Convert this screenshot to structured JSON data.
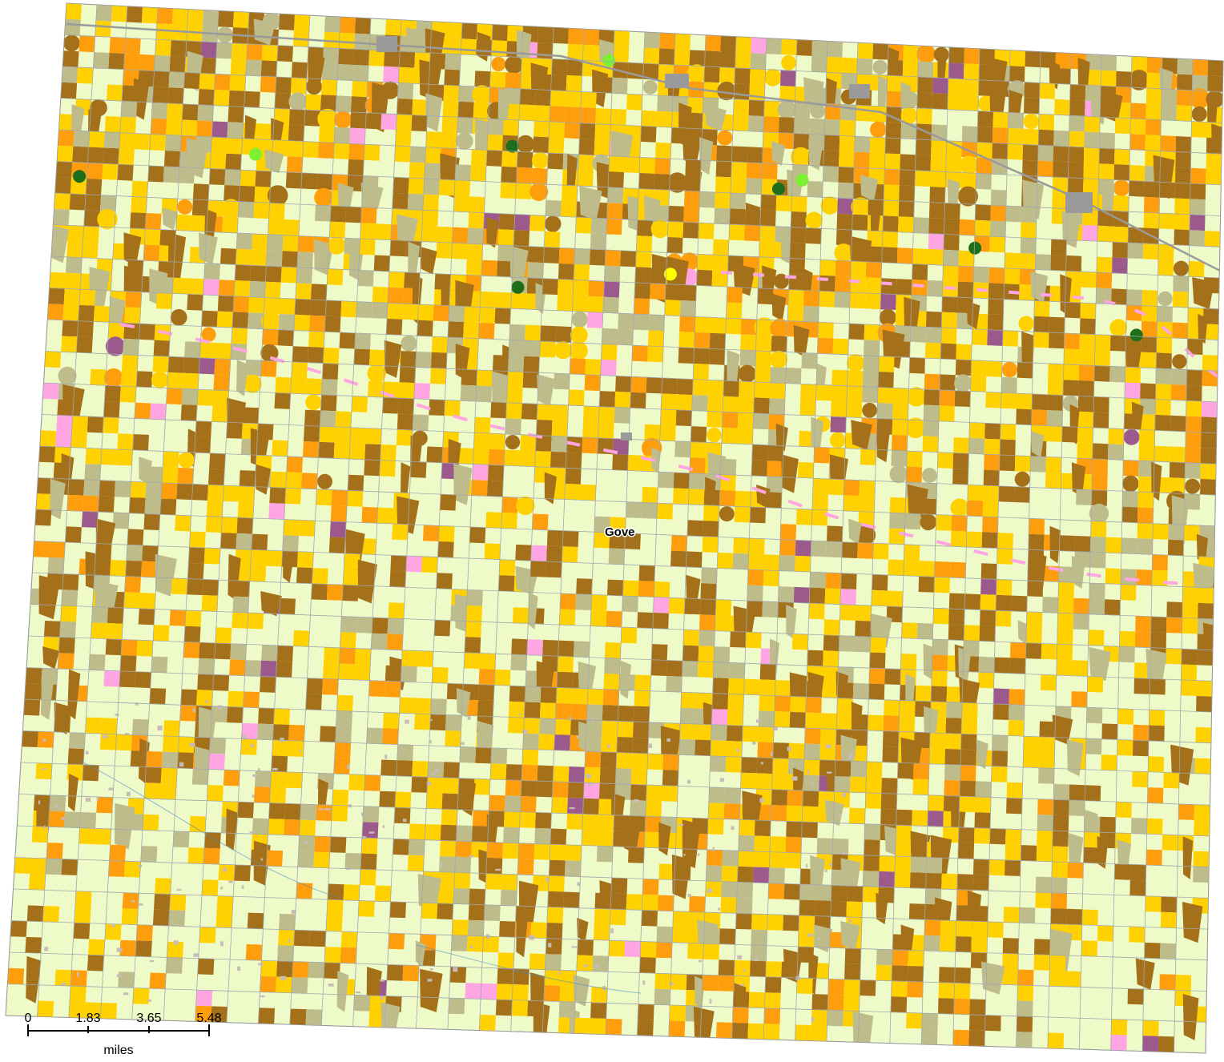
{
  "map": {
    "place_label": "Gove",
    "colors": {
      "grassland": "#EEFAC8",
      "winter_wheat": "#A5701A",
      "corn": "#FFD100",
      "sorghum": "#FF9E0C",
      "fallow": "#BFBC8C",
      "alfalfa": "#FFA5E2",
      "developed": "#9A9A9A",
      "road": "#A0A8B0",
      "sunflower": "#FFFF00",
      "triticale": "#9C5A8C",
      "evergreen": "#1F6E1A",
      "bright_green": "#7CF032",
      "shrub": "#C9BCB8",
      "water": "#4A8FC8"
    }
  },
  "scale_bar": {
    "ticks": [
      "0",
      "1.83",
      "3.65",
      "5.48"
    ],
    "unit": "miles"
  }
}
